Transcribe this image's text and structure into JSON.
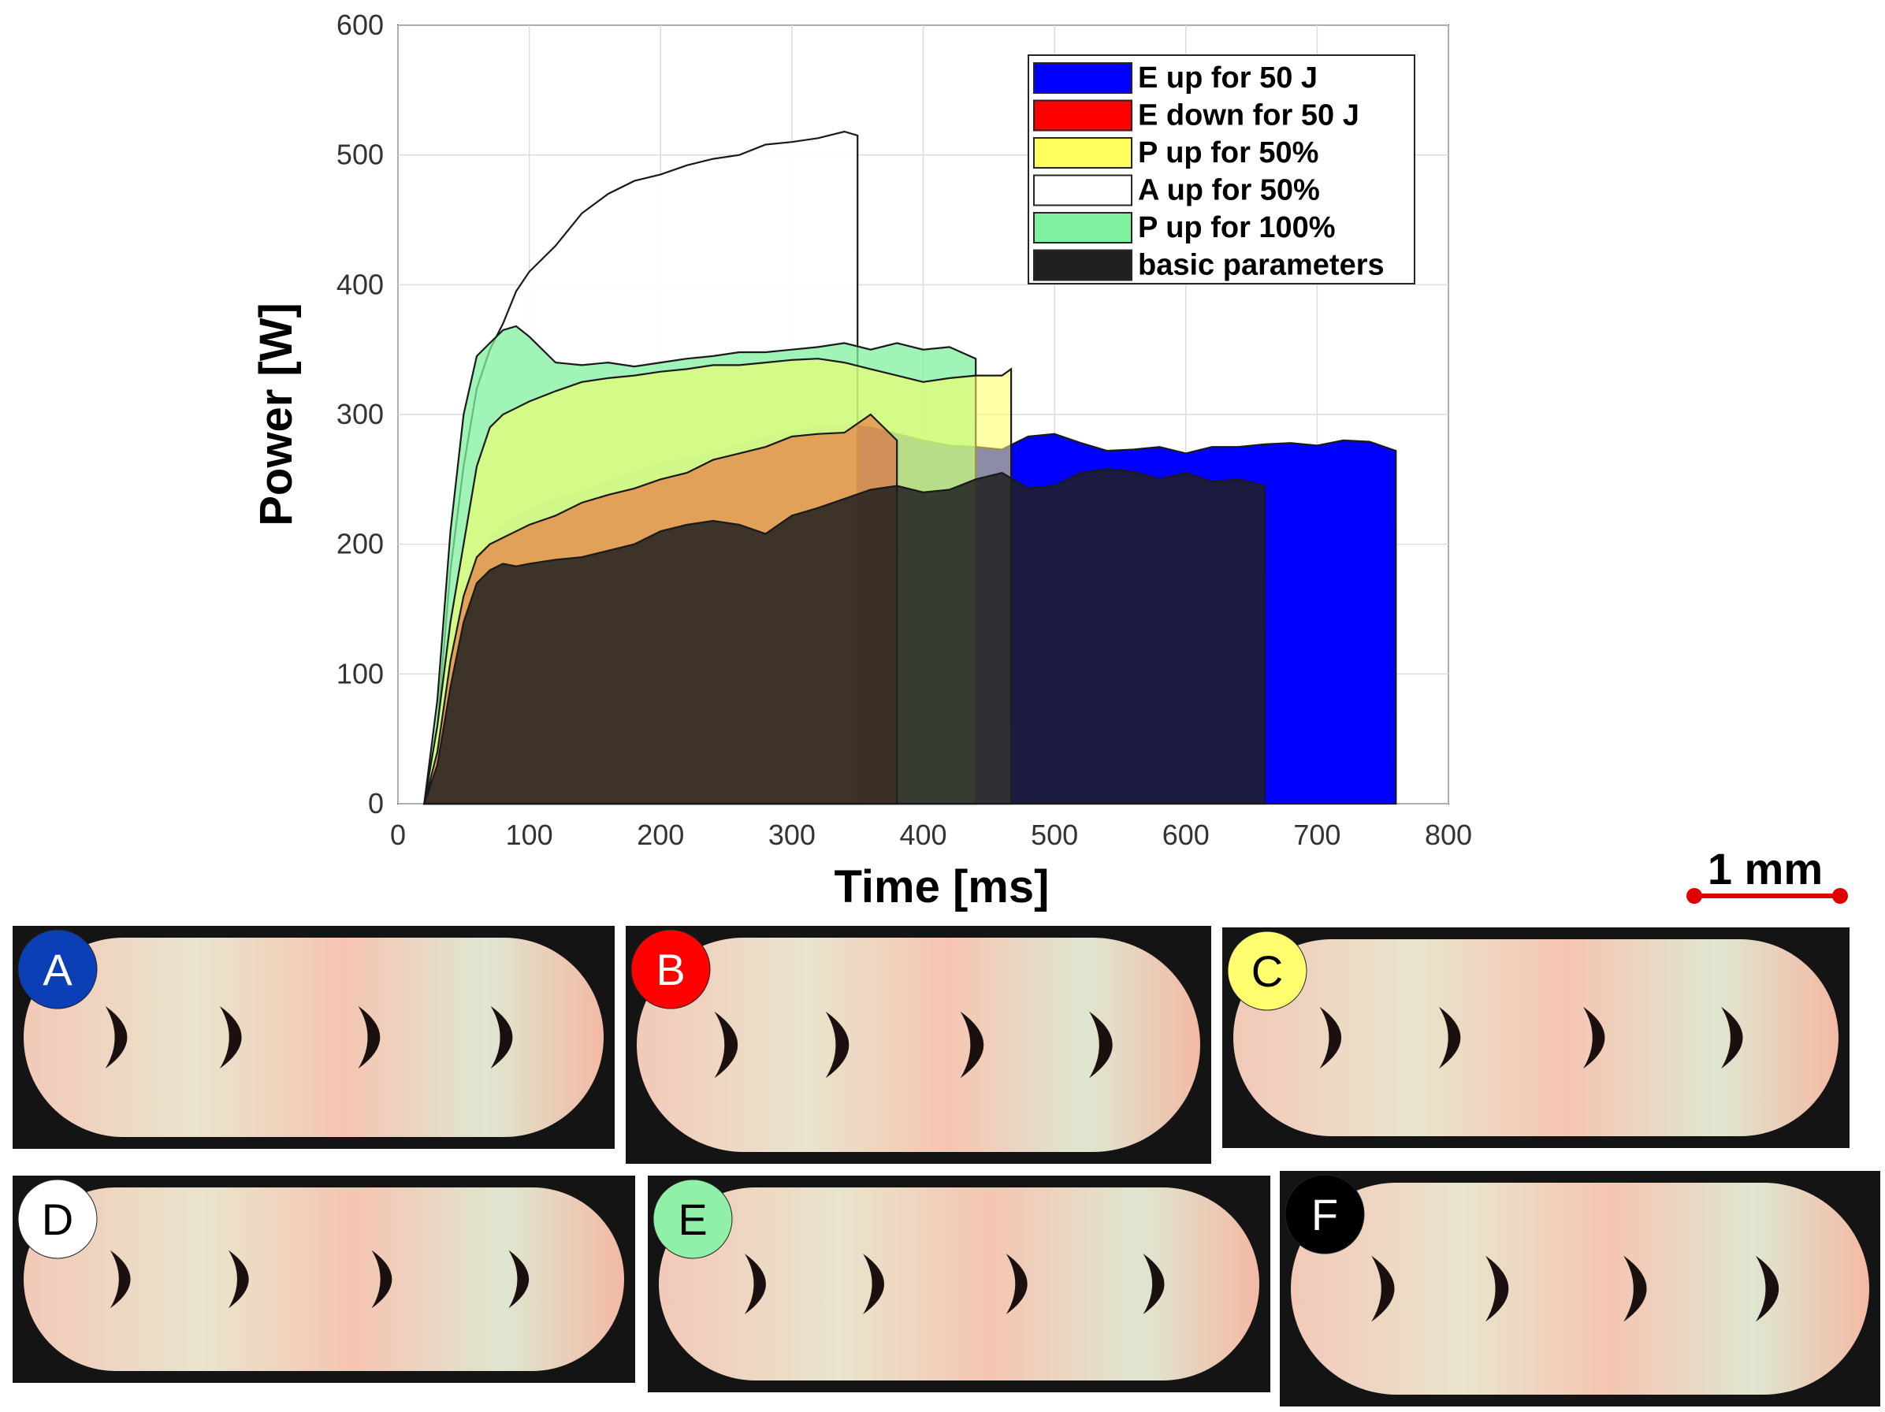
{
  "chart_data": {
    "type": "area",
    "title": "",
    "xlabel": "Time [ms]",
    "ylabel": "Power [W]",
    "xlim": [
      0,
      800
    ],
    "ylim": [
      0,
      600
    ],
    "x_ticks": [
      0,
      100,
      200,
      300,
      400,
      500,
      600,
      700,
      800
    ],
    "y_ticks": [
      0,
      100,
      200,
      300,
      400,
      500,
      600
    ],
    "grid": true,
    "legend_position": "top-right",
    "series": [
      {
        "name": "A up for 50%",
        "color": "#ffffff",
        "x": [
          20,
          30,
          40,
          50,
          60,
          70,
          80,
          90,
          100,
          120,
          140,
          160,
          180,
          200,
          220,
          240,
          260,
          280,
          300,
          320,
          340,
          350
        ],
        "y": [
          0,
          60,
          180,
          260,
          320,
          350,
          370,
          395,
          410,
          430,
          455,
          470,
          480,
          485,
          492,
          497,
          500,
          508,
          510,
          513,
          518,
          515
        ]
      },
      {
        "name": "P up for 100%",
        "color": "#80f0a0",
        "x": [
          20,
          30,
          40,
          50,
          60,
          70,
          80,
          90,
          100,
          120,
          140,
          160,
          180,
          200,
          220,
          240,
          260,
          280,
          300,
          320,
          340,
          360,
          380,
          400,
          420,
          440
        ],
        "y": [
          0,
          80,
          210,
          300,
          345,
          355,
          365,
          368,
          360,
          340,
          338,
          340,
          337,
          340,
          343,
          345,
          348,
          348,
          350,
          352,
          355,
          350,
          355,
          350,
          352,
          343
        ]
      },
      {
        "name": "P up for 50%",
        "color": "#ffff60",
        "x": [
          20,
          30,
          40,
          50,
          60,
          70,
          80,
          90,
          100,
          120,
          140,
          160,
          180,
          200,
          220,
          240,
          260,
          280,
          300,
          320,
          340,
          360,
          380,
          400,
          420,
          440,
          450,
          460,
          467
        ],
        "y": [
          0,
          60,
          140,
          200,
          260,
          290,
          300,
          305,
          310,
          318,
          325,
          328,
          330,
          333,
          335,
          338,
          338,
          340,
          342,
          343,
          340,
          335,
          330,
          325,
          328,
          330,
          330,
          330,
          335
        ]
      },
      {
        "name": "E up for 50 J",
        "color": "#0000ff",
        "x": [
          20,
          30,
          40,
          50,
          60,
          70,
          80,
          90,
          100,
          120,
          140,
          160,
          180,
          200,
          220,
          240,
          260,
          280,
          300,
          320,
          340,
          360,
          380,
          400,
          420,
          440,
          460,
          480,
          500,
          520,
          540,
          560,
          580,
          600,
          620,
          640,
          660,
          680,
          700,
          720,
          740,
          760
        ],
        "y": [
          0,
          40,
          110,
          160,
          190,
          205,
          215,
          220,
          225,
          235,
          240,
          248,
          255,
          262,
          266,
          270,
          276,
          282,
          286,
          290,
          292,
          290,
          285,
          280,
          276,
          275,
          273,
          283,
          285,
          278,
          272,
          273,
          275,
          270,
          275,
          275,
          277,
          278,
          276,
          280,
          279,
          272
        ]
      },
      {
        "name": "E down for 50 J",
        "color": "#ff0000",
        "x": [
          20,
          30,
          40,
          50,
          60,
          70,
          80,
          90,
          100,
          120,
          140,
          160,
          180,
          200,
          220,
          240,
          260,
          280,
          300,
          320,
          340,
          360,
          380
        ],
        "y": [
          0,
          40,
          110,
          160,
          190,
          200,
          205,
          210,
          215,
          222,
          232,
          238,
          243,
          250,
          255,
          265,
          270,
          275,
          283,
          285,
          286,
          300,
          280
        ]
      },
      {
        "name": "basic parameters",
        "color": "#202020",
        "x": [
          20,
          30,
          40,
          50,
          60,
          70,
          80,
          90,
          100,
          120,
          140,
          160,
          180,
          200,
          220,
          240,
          260,
          280,
          300,
          320,
          340,
          360,
          380,
          400,
          420,
          440,
          460,
          480,
          500,
          520,
          540,
          560,
          580,
          600,
          620,
          640,
          660
        ],
        "y": [
          0,
          30,
          90,
          140,
          170,
          180,
          185,
          183,
          185,
          188,
          190,
          195,
          200,
          210,
          215,
          218,
          215,
          208,
          222,
          228,
          235,
          242,
          245,
          240,
          242,
          250,
          255,
          243,
          245,
          255,
          258,
          256,
          250,
          255,
          248,
          250,
          245
        ]
      }
    ],
    "legend": [
      "E up for 50 J",
      "E down for 50 J",
      "P up for 50%",
      "A up for 50%",
      "P up for 100%",
      "basic parameters"
    ]
  },
  "panels": [
    {
      "letter": "A",
      "color": "#0a3fb5",
      "text_color": "#ffffff"
    },
    {
      "letter": "B",
      "color": "#ff0000",
      "text_color": "#ffffff"
    },
    {
      "letter": "C",
      "color": "#ffff70",
      "text_color": "#000000"
    },
    {
      "letter": "D",
      "color": "#ffffff",
      "text_color": "#000000"
    },
    {
      "letter": "E",
      "color": "#90f0a8",
      "text_color": "#000000"
    },
    {
      "letter": "F",
      "color": "#000000",
      "text_color": "#ffffff"
    }
  ],
  "scale_bar": {
    "label": "1 mm",
    "color": "#e00000"
  }
}
